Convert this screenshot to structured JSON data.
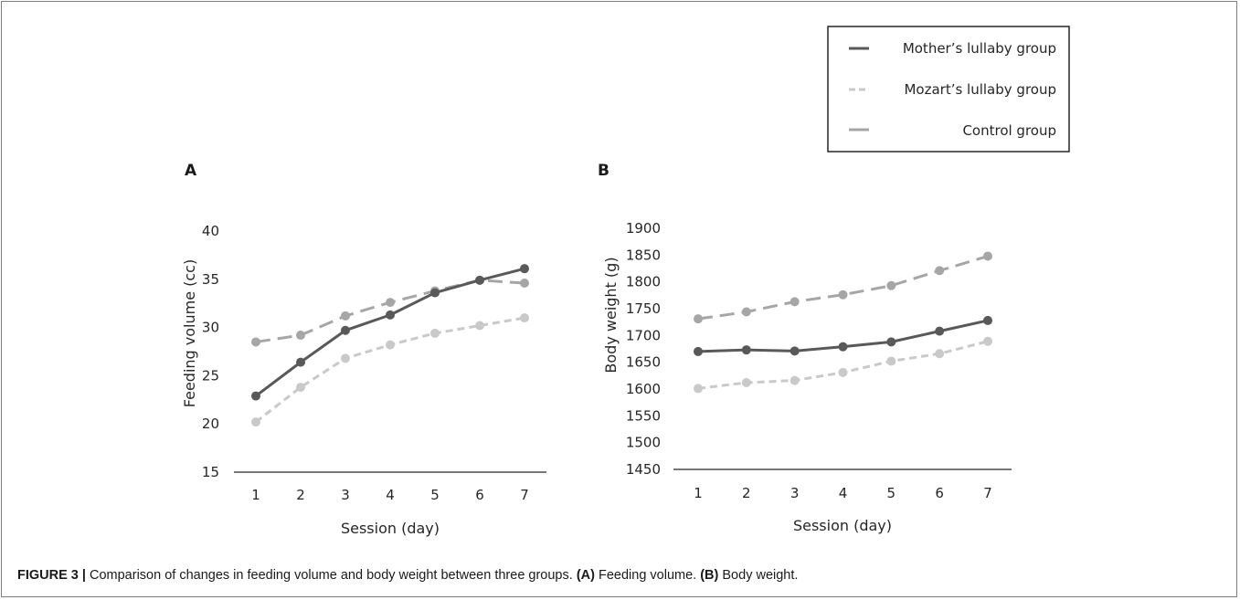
{
  "figure": {
    "caption_label": "FIGURE 3 |",
    "caption_text": " Comparison of changes in feeding volume and body weight between three groups. ",
    "caption_a_label": "(A)",
    "caption_a_text": " Feeding volume. ",
    "caption_b_label": "(B)",
    "caption_b_text": " Body weight."
  },
  "legend": {
    "entries": [
      {
        "label": "Mother’s lullaby group",
        "style": "solid",
        "color": "#595959"
      },
      {
        "label": "Mozart’s lullaby group",
        "style": "dashed",
        "color": "#c9c9c9"
      },
      {
        "label": "Control group",
        "style": "dashed",
        "color": "#a6a6a6"
      }
    ]
  },
  "chart_data": [
    {
      "panel_label": "A",
      "type": "line",
      "xlabel": "Session (day)",
      "ylabel": "Feeding volume (cc)",
      "x": [
        1,
        2,
        3,
        4,
        5,
        6,
        7
      ],
      "ylim": [
        15,
        40
      ],
      "yticks": [
        15,
        20,
        25,
        30,
        35,
        40
      ],
      "series": [
        {
          "name": "Mother’s lullaby group",
          "color": "#595959",
          "dashed": false,
          "values": [
            22.9,
            26.4,
            29.7,
            31.3,
            33.6,
            34.9,
            36.1
          ]
        },
        {
          "name": "Mozart’s lullaby group",
          "color": "#c9c9c9",
          "dashed": true,
          "values": [
            20.2,
            23.8,
            26.8,
            28.2,
            29.4,
            30.2,
            31.0
          ]
        },
        {
          "name": "Control group",
          "color": "#a6a6a6",
          "dashed": true,
          "values": [
            28.5,
            29.2,
            31.2,
            32.6,
            33.8,
            34.9,
            34.6
          ]
        }
      ]
    },
    {
      "panel_label": "B",
      "type": "line",
      "xlabel": "Session (day)",
      "ylabel": "Body weight (g)",
      "x": [
        1,
        2,
        3,
        4,
        5,
        6,
        7
      ],
      "ylim": [
        1450,
        1900
      ],
      "yticks": [
        1450,
        1500,
        1550,
        1600,
        1650,
        1700,
        1750,
        1800,
        1850,
        1900
      ],
      "series": [
        {
          "name": "Mother’s lullaby group",
          "color": "#595959",
          "dashed": false,
          "values": [
            1670,
            1673,
            1671,
            1679,
            1688,
            1708,
            1728
          ]
        },
        {
          "name": "Mozart’s lullaby group",
          "color": "#c9c9c9",
          "dashed": true,
          "values": [
            1601,
            1612,
            1616,
            1631,
            1652,
            1666,
            1689
          ]
        },
        {
          "name": "Control group",
          "color": "#a6a6a6",
          "dashed": true,
          "values": [
            1731,
            1744,
            1763,
            1776,
            1793,
            1821,
            1848
          ]
        }
      ]
    }
  ]
}
